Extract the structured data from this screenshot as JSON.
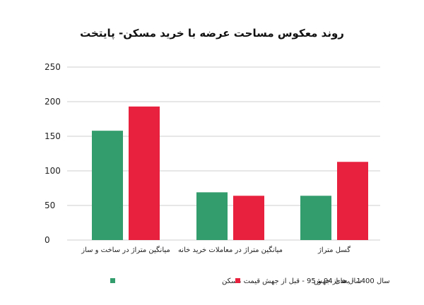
{
  "chart_data": {
    "type": "bar",
    "title": "روند معکوس مساحت عرضه با خرید مسکن- پایتخت",
    "categories": [
      "میانگین متراژ در ساخت و ساز",
      "میانگین متراژ در معاملات خرید خانه",
      "گسل متراژ"
    ],
    "series": [
      {
        "name": "سال های 94 و 95 - قبل از جهش قیمت مسکن",
        "values": [
          158,
          69,
          64
        ]
      },
      {
        "name": "سال 1400 - بعد از جهش",
        "values": [
          193,
          64,
          113
        ]
      }
    ],
    "y_ticks": [
      "0",
      "50",
      "100",
      "150",
      "200",
      "250"
    ],
    "ylim": [
      0,
      250
    ],
    "grid": true,
    "legend_position": "bottom",
    "colors": [
      "#339d6d",
      "#e8223e"
    ]
  }
}
